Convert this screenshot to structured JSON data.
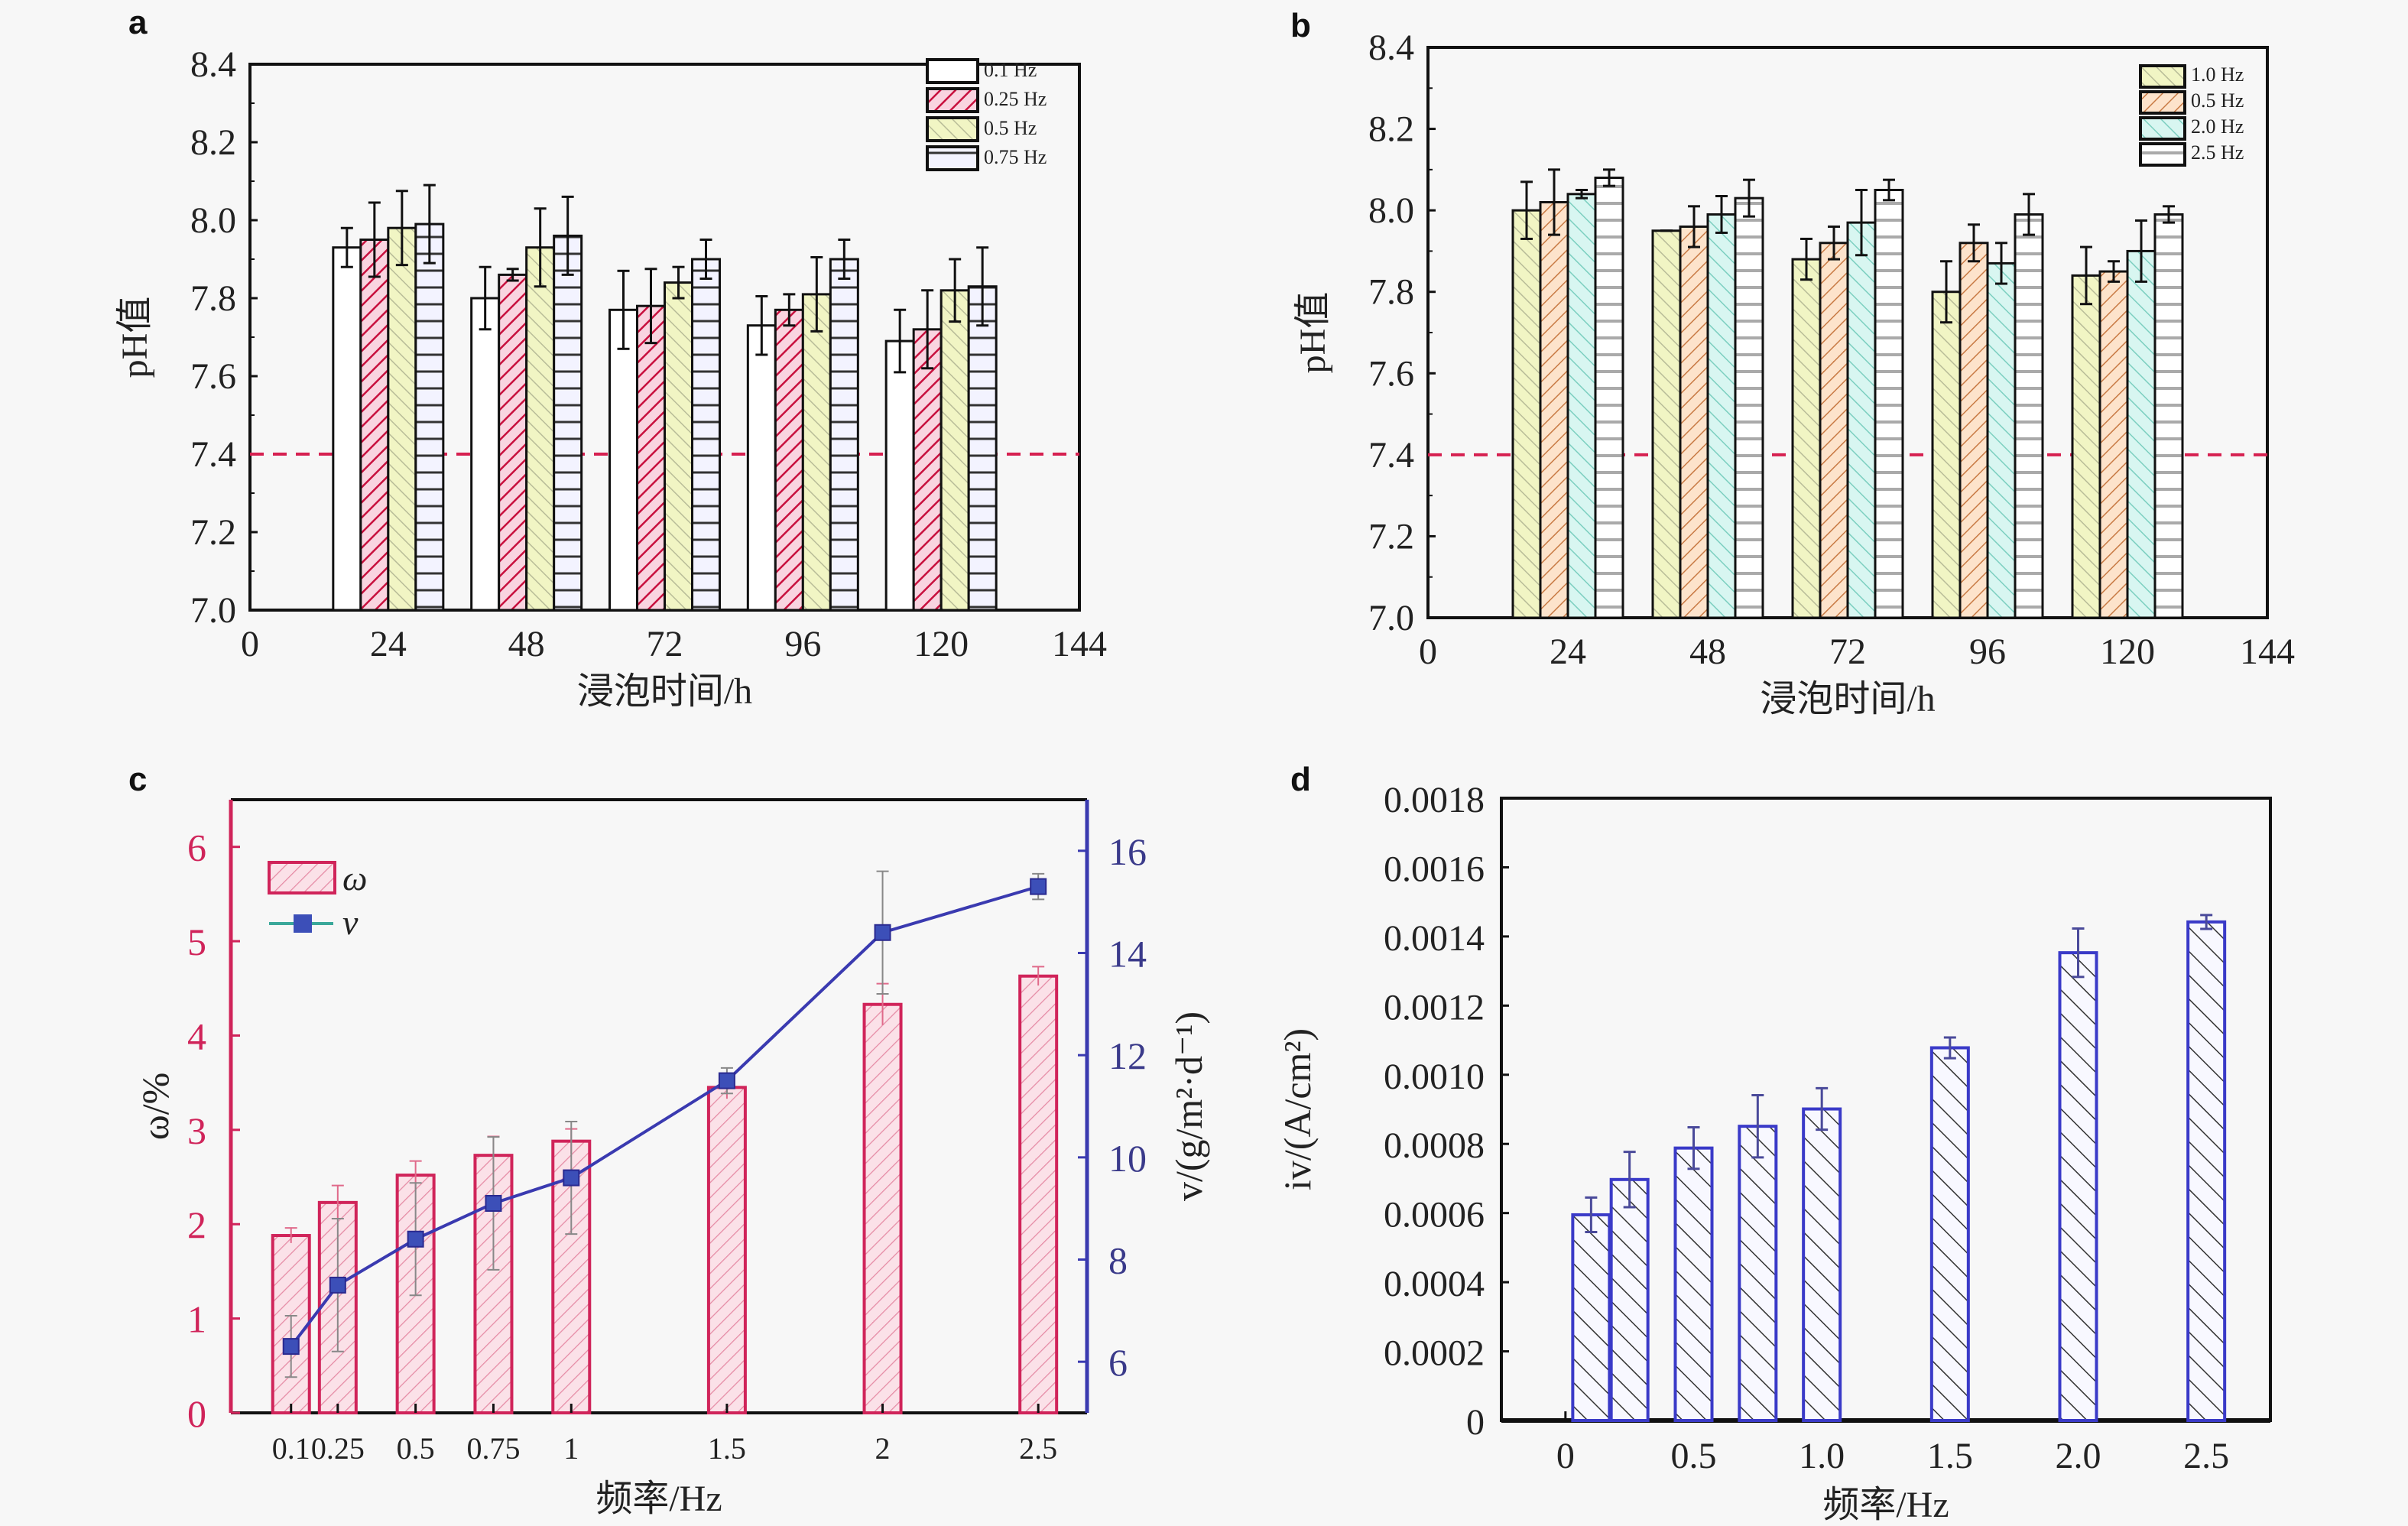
{
  "chart_data": [
    {
      "panel": "a",
      "type": "bar",
      "xlabel": "浸泡时间/h",
      "ylabel": "pH值",
      "xlim": [
        0,
        144
      ],
      "ylim": [
        7.0,
        8.4
      ],
      "xticks": [
        "0",
        "24",
        "48",
        "72",
        "96",
        "120",
        "144"
      ],
      "yticks": [
        "7.0",
        "7.2",
        "7.4",
        "7.6",
        "7.8",
        "8.0",
        "8.2",
        "8.4"
      ],
      "categories": [
        24,
        48,
        72,
        96,
        120
      ],
      "reference_line": {
        "y": 7.4,
        "style": "dashed",
        "color": "#d62050"
      },
      "legend_position": "top-right",
      "series": [
        {
          "name": "0.1 Hz",
          "values": [
            7.93,
            7.8,
            7.77,
            7.73,
            7.69
          ],
          "errors": [
            0.05,
            0.08,
            0.1,
            0.075,
            0.08
          ],
          "fill": "#ffffff",
          "pattern": "none"
        },
        {
          "name": "0.25 Hz",
          "values": [
            7.95,
            7.86,
            7.78,
            7.77,
            7.72
          ],
          "errors": [
            0.095,
            0.015,
            0.095,
            0.04,
            0.1
          ],
          "fill": "#f7c6d6",
          "pattern": "diag-red"
        },
        {
          "name": "0.5 Hz",
          "values": [
            7.98,
            7.93,
            7.84,
            7.81,
            7.82
          ],
          "errors": [
            0.095,
            0.1,
            0.04,
            0.095,
            0.08
          ],
          "fill": "#f2f5c0",
          "pattern": "diag-back"
        },
        {
          "name": "0.75 Hz",
          "values": [
            7.99,
            7.96,
            7.9,
            7.9,
            7.83
          ],
          "errors": [
            0.1,
            0.1,
            0.05,
            0.05,
            0.1
          ],
          "fill": "#eef2ff",
          "pattern": "horiz"
        }
      ]
    },
    {
      "panel": "b",
      "type": "bar",
      "xlabel": "浸泡时间/h",
      "ylabel": "pH值",
      "xlim": [
        0,
        144
      ],
      "ylim": [
        7.0,
        8.4
      ],
      "xticks": [
        "0",
        "24",
        "48",
        "72",
        "96",
        "120",
        "144"
      ],
      "yticks": [
        "7.0",
        "7.2",
        "7.4",
        "7.6",
        "7.8",
        "8.0",
        "8.2",
        "8.4"
      ],
      "categories": [
        24,
        48,
        72,
        96,
        120
      ],
      "reference_line": {
        "y": 7.4,
        "style": "dashed",
        "color": "#d62050"
      },
      "legend_position": "top-right",
      "series": [
        {
          "name": "1.0 Hz",
          "values": [
            8.0,
            7.95,
            7.88,
            7.8,
            7.84
          ],
          "errors": [
            0.07,
            0.0,
            0.05,
            0.075,
            0.07
          ],
          "fill": "#cdeedd",
          "pattern": "diag-back"
        },
        {
          "name": "0.5 Hz",
          "values": [
            8.02,
            7.96,
            7.92,
            7.92,
            7.85
          ],
          "errors": [
            0.08,
            0.05,
            0.04,
            0.045,
            0.025
          ],
          "fill": "#fde1c8",
          "pattern": "diag-orange"
        },
        {
          "name": "2.0 Hz",
          "values": [
            8.04,
            7.99,
            7.97,
            7.87,
            7.9
          ],
          "errors": [
            0.01,
            0.045,
            0.08,
            0.05,
            0.075
          ],
          "fill": "#d4f4ef",
          "pattern": "diag-back-teal"
        },
        {
          "name": "2.5 Hz",
          "values": [
            8.08,
            8.03,
            8.05,
            7.99,
            7.99
          ],
          "errors": [
            0.02,
            0.045,
            0.025,
            0.05,
            0.02
          ],
          "fill": "#ffffff",
          "pattern": "horiz-gray"
        }
      ]
    },
    {
      "panel": "c",
      "type": "bar",
      "xlabel": "频率/Hz",
      "ylabel": "ω/%",
      "y2label": "v/(g/m²·d⁻¹)",
      "ylim": [
        0,
        6.5
      ],
      "y2lim": [
        5,
        17
      ],
      "yticks": [
        "0",
        "1",
        "2",
        "3",
        "4",
        "5",
        "6"
      ],
      "y2ticks": [
        "6",
        "8",
        "10",
        "12",
        "14",
        "16"
      ],
      "xlim": [
        0,
        2.75
      ],
      "x": [
        0.1,
        0.25,
        0.5,
        0.75,
        1,
        1.5,
        2,
        2.5
      ],
      "xtick_labels": [
        "0.1",
        "0.25",
        "0.5",
        "0.75",
        "1",
        "1.5",
        "2",
        "2.5"
      ],
      "legend_position": "top-left",
      "series": [
        {
          "name": "ω",
          "kind": "bar",
          "axis": "left",
          "values": [
            1.88,
            2.23,
            2.52,
            2.73,
            2.88,
            3.45,
            4.33,
            4.63
          ],
          "errors": [
            0.08,
            0.18,
            0.15,
            0.2,
            0.13,
            0.12,
            0.22,
            0.1
          ],
          "color": "#d0245a"
        },
        {
          "name": "v",
          "kind": "line",
          "axis": "right",
          "values": [
            6.3,
            7.5,
            8.4,
            9.1,
            9.6,
            11.5,
            14.4,
            15.3
          ],
          "errors": [
            0.6,
            1.3,
            1.1,
            1.3,
            1.1,
            0.25,
            1.2,
            0.25
          ],
          "color": "#3a3aa8"
        }
      ]
    },
    {
      "panel": "d",
      "type": "bar",
      "xlabel": "频率/Hz",
      "ylabel": "iv/(A/cm²)",
      "ylim": [
        0,
        0.0018
      ],
      "yticks": [
        "0",
        "0.0002",
        "0.0004",
        "0.0006",
        "0.0008",
        "0.0010",
        "0.0012",
        "0.0014",
        "0.0016",
        "0.0018"
      ],
      "xlim": [
        -0.25,
        2.75
      ],
      "xtick_labels": [
        "0",
        "0.5",
        "1.0",
        "1.5",
        "2.0",
        "2.5"
      ],
      "xtick_values": [
        0,
        0.5,
        1.0,
        1.5,
        2.0,
        2.5
      ],
      "x": [
        0.1,
        0.25,
        0.5,
        0.75,
        1.0,
        1.5,
        2.0,
        2.5
      ],
      "series": [
        {
          "name": "iv",
          "values": [
            0.000595,
            0.000697,
            0.000788,
            0.000851,
            0.000901,
            0.001078,
            0.001353,
            0.001442
          ],
          "errors": [
            5e-05,
            8e-05,
            6e-05,
            9e-05,
            6e-05,
            3e-05,
            7e-05,
            2e-05
          ],
          "color": "#3a3ac8"
        }
      ]
    }
  ],
  "panels": {
    "a": {
      "letter": "a"
    },
    "b": {
      "letter": "b"
    },
    "c": {
      "letter": "c"
    },
    "d": {
      "letter": "d"
    }
  }
}
